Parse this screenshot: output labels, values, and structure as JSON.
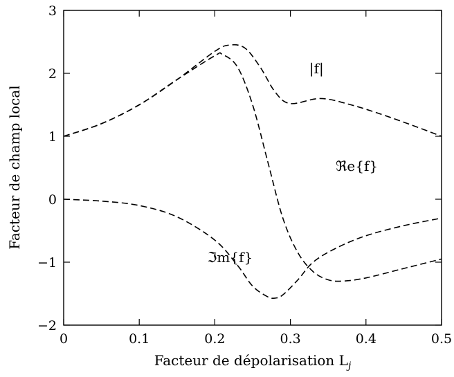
{
  "chart_data": {
    "type": "line",
    "title": "",
    "xlabel": "Facteur de dépolarisation L",
    "xlabel_subscript": "j",
    "ylabel": "Facteur de champ local",
    "xlim": [
      0,
      0.5
    ],
    "ylim": [
      -2,
      3
    ],
    "x_ticks": [
      0,
      0.1,
      0.2,
      0.3,
      0.4,
      0.5
    ],
    "x_tick_labels": [
      "0",
      "0.1",
      "0.2",
      "0.3",
      "0.4",
      "0.5"
    ],
    "y_ticks": [
      -2,
      -1,
      0,
      1,
      2,
      3
    ],
    "y_tick_labels": [
      "−2",
      "−1",
      "0",
      "1",
      "2",
      "3"
    ],
    "grid": false,
    "line_style": "dashed",
    "series": [
      {
        "name": "|f|",
        "x": [
          0,
          0.05,
          0.1,
          0.15,
          0.2,
          0.22,
          0.24,
          0.26,
          0.28,
          0.3,
          0.34,
          0.38,
          0.42,
          0.46,
          0.5
        ],
        "y": [
          1.0,
          1.2,
          1.5,
          1.9,
          2.35,
          2.45,
          2.4,
          2.1,
          1.7,
          1.52,
          1.6,
          1.5,
          1.35,
          1.18,
          1.0
        ]
      },
      {
        "name": "ℜe{f}",
        "x": [
          0,
          0.05,
          0.1,
          0.15,
          0.2,
          0.21,
          0.23,
          0.25,
          0.27,
          0.29,
          0.31,
          0.33,
          0.35,
          0.37,
          0.4,
          0.45,
          0.5
        ],
        "y": [
          1.0,
          1.2,
          1.5,
          1.9,
          2.28,
          2.3,
          2.1,
          1.5,
          0.6,
          -0.3,
          -0.85,
          -1.15,
          -1.28,
          -1.3,
          -1.25,
          -1.1,
          -0.95
        ]
      },
      {
        "name": "ℑm{f}",
        "x": [
          0,
          0.05,
          0.1,
          0.15,
          0.2,
          0.23,
          0.25,
          0.27,
          0.28,
          0.29,
          0.31,
          0.33,
          0.36,
          0.4,
          0.45,
          0.5
        ],
        "y": [
          0.0,
          -0.03,
          -0.1,
          -0.28,
          -0.65,
          -1.05,
          -1.38,
          -1.55,
          -1.57,
          -1.52,
          -1.28,
          -1.0,
          -0.78,
          -0.58,
          -0.42,
          -0.3
        ]
      }
    ],
    "annotations": [
      {
        "text": "|f|",
        "x": 0.325,
        "y": 2.0
      },
      {
        "text": "ℜe{f}",
        "x": 0.36,
        "y": 0.45
      },
      {
        "text": "ℑm{f}",
        "x": 0.19,
        "y": -1.0
      }
    ]
  }
}
